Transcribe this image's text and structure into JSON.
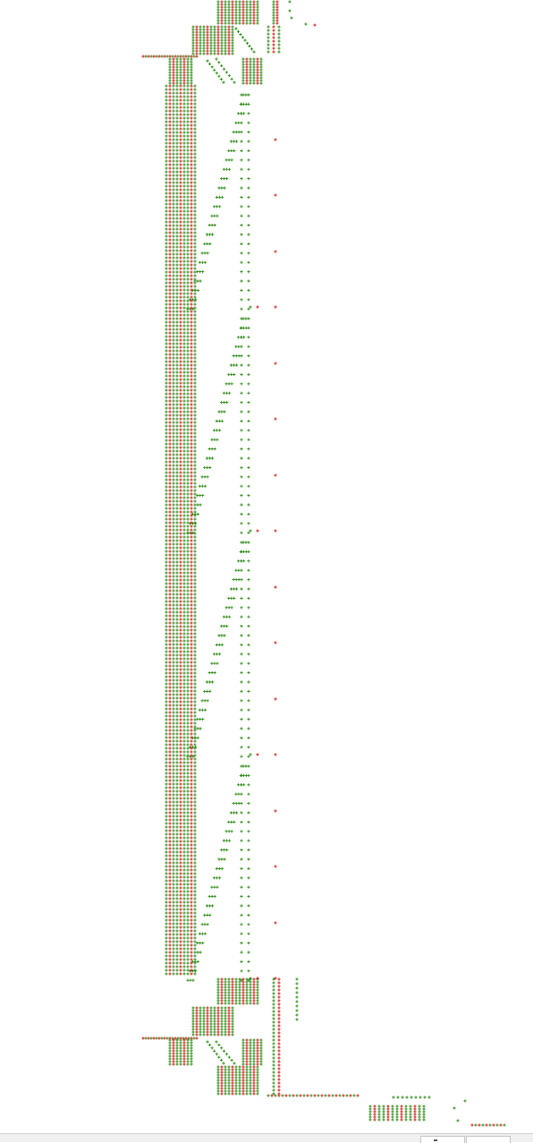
{
  "chart_data": {
    "type": "scatter",
    "title": "",
    "xlabel": "",
    "ylabel": "",
    "grid": false,
    "legend": "none",
    "marker": "plus",
    "series": [
      {
        "color": "#d01818"
      },
      {
        "color": "#2a8a12"
      }
    ]
  },
  "colors": {
    "red": "#d01818",
    "green": "#2a8a12",
    "background": "#ffffff",
    "status_bar": "#f0f0f0"
  }
}
